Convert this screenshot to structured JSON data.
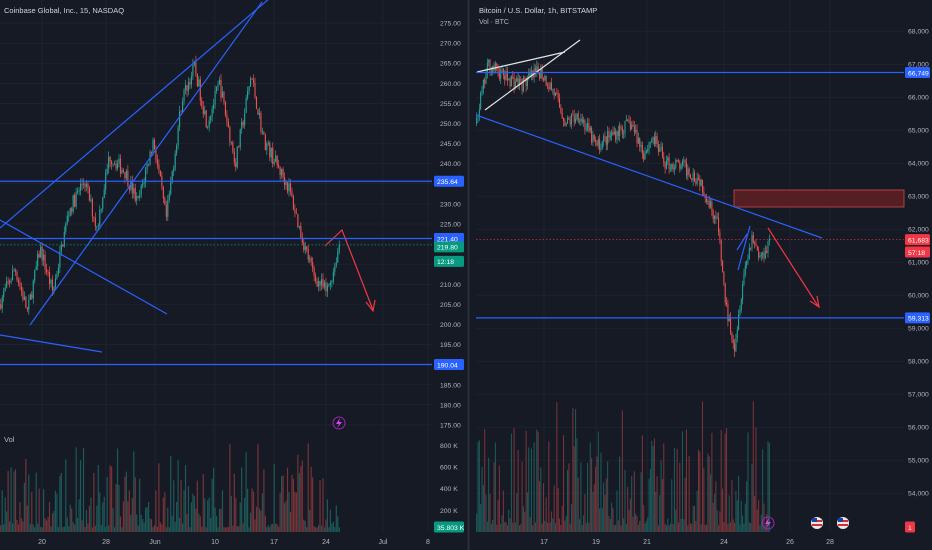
{
  "colors": {
    "background": "#161a25",
    "grid": "#232734",
    "axis_text": "#b2b5be",
    "up": "#26a69a",
    "down": "#ef5350",
    "trendline": "#2962ff",
    "level_line": "#2962ff",
    "arrow": "#f23645",
    "wedge_white": "#e6e6e6",
    "zone_fill": "#5b1f24",
    "zone_border": "#d0464b",
    "badge_blue": "#2962ff",
    "badge_green": "#089981",
    "badge_red": "#f23645",
    "divider": "#2a2e39"
  },
  "chart_data": [
    {
      "type": "candlestick",
      "title": "Coinbase Global, Inc., 15, NASDAQ",
      "volume_label": "Vol",
      "x_tick_labels": [
        "20",
        "28",
        "Jun",
        "10",
        "17",
        "24",
        "Jul",
        "8"
      ],
      "y_tick_labels": [
        "275.00",
        "270.00",
        "265.00",
        "260.00",
        "255.00",
        "250.00",
        "245.00",
        "240.00",
        "235.00",
        "230.00",
        "225.00",
        "220.00",
        "215.00",
        "210.00",
        "205.00",
        "200.00",
        "195.00",
        "190.00",
        "185.00",
        "180.00",
        "175.00"
      ],
      "ylim": [
        172,
        278
      ],
      "volume_tick_labels": [
        "800 K",
        "600 K",
        "400 K",
        "200 K"
      ],
      "volume_ylim": [
        0,
        850000
      ],
      "grid": true,
      "price_path": [
        [
          0,
          205
        ],
        [
          5,
          214
        ],
        [
          9,
          203
        ],
        [
          13,
          219
        ],
        [
          17,
          208
        ],
        [
          22,
          228
        ],
        [
          27,
          236
        ],
        [
          31,
          224
        ],
        [
          35,
          242
        ],
        [
          40,
          238
        ],
        [
          44,
          230
        ],
        [
          49,
          246
        ],
        [
          53,
          226
        ],
        [
          58,
          256
        ],
        [
          62,
          264
        ],
        [
          66,
          250
        ],
        [
          70,
          260
        ],
        [
          75,
          240
        ],
        [
          80,
          262
        ],
        [
          84,
          246
        ],
        [
          88,
          240
        ],
        [
          92,
          234
        ],
        [
          96,
          222
        ],
        [
          100,
          212
        ],
        [
          104,
          208
        ],
        [
          106,
          213
        ],
        [
          108,
          220
        ]
      ],
      "path_x_range": [
        0,
        108
      ],
      "horizontal_levels": [
        {
          "value": 235.64,
          "label": "235.64"
        },
        {
          "value": 221.4,
          "label": "221.40"
        },
        {
          "value": 190.04,
          "label": "190.04"
        }
      ],
      "price_badges": [
        {
          "value": 221.4,
          "label": "221.40",
          "color": "blue"
        },
        {
          "value": 219.8,
          "label": "219.80",
          "color": "green"
        },
        {
          "value": 217.2,
          "label": "12:18",
          "color": "green"
        }
      ],
      "last_volume_badge": "35.803 K"
    },
    {
      "type": "candlestick",
      "title": "Bitcoin / U.S. Dollar, 1h, BITSTAMP",
      "volume_label": "Vol · BTC",
      "x_tick_labels": [
        "17",
        "19",
        "21",
        "24",
        "26",
        "28"
      ],
      "y_tick_labels": [
        "68,000",
        "67,000",
        "66,000",
        "65,000",
        "64,000",
        "63,000",
        "62,000",
        "61,000",
        "60,000",
        "59,000",
        "58,000",
        "57,000",
        "56,000",
        "55,000",
        "54,000"
      ],
      "ylim": [
        53400,
        68400
      ],
      "grid": true,
      "price_path": [
        [
          0,
          65200
        ],
        [
          3,
          67000
        ],
        [
          7,
          66600
        ],
        [
          11,
          66400
        ],
        [
          15,
          66800
        ],
        [
          18,
          66200
        ],
        [
          21,
          65200
        ],
        [
          24,
          65500
        ],
        [
          28,
          64500
        ],
        [
          32,
          64900
        ],
        [
          36,
          65200
        ],
        [
          39,
          64300
        ],
        [
          41,
          64800
        ],
        [
          44,
          64000
        ],
        [
          48,
          63900
        ],
        [
          52,
          63500
        ],
        [
          56,
          62200
        ],
        [
          58,
          59600
        ],
        [
          60,
          58500
        ],
        [
          62,
          60600
        ],
        [
          64,
          61800
        ],
        [
          66,
          61100
        ],
        [
          68,
          61683
        ]
      ],
      "path_x_range": [
        0,
        68
      ],
      "horizontal_levels": [
        {
          "value": 66749,
          "label": "66,749"
        },
        {
          "value": 59313,
          "label": "59,313"
        }
      ],
      "resistance_zone": [
        62500,
        63000
      ],
      "price_badges": [
        {
          "value": 61683,
          "label": "61,683",
          "color": "red"
        },
        {
          "value": 61430,
          "label": "57:18",
          "color": "red"
        }
      ],
      "last_volume_badge": "1"
    }
  ]
}
